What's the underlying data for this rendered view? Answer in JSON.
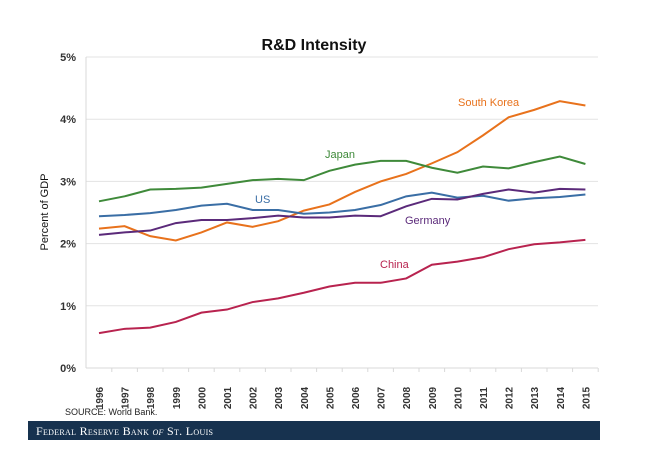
{
  "chart_data": {
    "type": "line",
    "title": "R&D Intensity",
    "xlabel": "",
    "ylabel": "Percent of GDP",
    "ylim": [
      0,
      5
    ],
    "yticks": [
      "0%",
      "1%",
      "2%",
      "3%",
      "4%",
      "5%"
    ],
    "grid": true,
    "legend": "inline labels",
    "x": [
      "1996",
      "1997",
      "1998",
      "1999",
      "2000",
      "2001",
      "2002",
      "2003",
      "2004",
      "2005",
      "2006",
      "2007",
      "2008",
      "2009",
      "2010",
      "2011",
      "2012",
      "2013",
      "2014",
      "2015"
    ],
    "series": [
      {
        "name": "South Korea",
        "color": "#e8721c",
        "values": [
          2.24,
          2.28,
          2.12,
          2.05,
          2.18,
          2.34,
          2.27,
          2.36,
          2.53,
          2.63,
          2.83,
          3.0,
          3.12,
          3.29,
          3.47,
          3.74,
          4.03,
          4.15,
          4.29,
          4.22
        ]
      },
      {
        "name": "Japan",
        "color": "#3f8a3a",
        "values": [
          2.68,
          2.76,
          2.87,
          2.88,
          2.9,
          2.96,
          3.02,
          3.04,
          3.02,
          3.17,
          3.27,
          3.33,
          3.33,
          3.22,
          3.14,
          3.24,
          3.21,
          3.31,
          3.4,
          3.28
        ]
      },
      {
        "name": "US",
        "color": "#3a6ea5",
        "values": [
          2.44,
          2.46,
          2.49,
          2.54,
          2.61,
          2.64,
          2.54,
          2.54,
          2.48,
          2.5,
          2.54,
          2.62,
          2.76,
          2.82,
          2.74,
          2.77,
          2.69,
          2.73,
          2.75,
          2.79
        ]
      },
      {
        "name": "Germany",
        "color": "#5b2a7a",
        "values": [
          2.14,
          2.18,
          2.21,
          2.33,
          2.38,
          2.38,
          2.41,
          2.45,
          2.42,
          2.42,
          2.45,
          2.44,
          2.6,
          2.72,
          2.71,
          2.8,
          2.87,
          2.82,
          2.88,
          2.87
        ]
      },
      {
        "name": "China",
        "color": "#b8234f",
        "values": [
          0.56,
          0.63,
          0.65,
          0.74,
          0.89,
          0.94,
          1.06,
          1.12,
          1.21,
          1.31,
          1.37,
          1.37,
          1.44,
          1.66,
          1.71,
          1.78,
          1.91,
          1.99,
          2.02,
          2.06
        ]
      }
    ]
  },
  "source": "SOURCE: World Bank.",
  "footer": {
    "part1": "Federal Reserve Bank ",
    "part2": "of",
    "part3": " St. Louis"
  }
}
